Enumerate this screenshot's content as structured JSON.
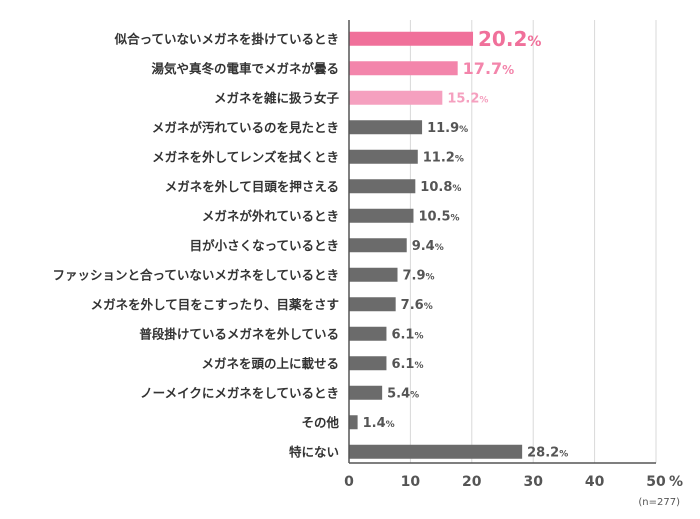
{
  "chart_data": {
    "type": "bar",
    "orientation": "horizontal",
    "categories": [
      "似合っていないメガネを掛けているとき",
      "湯気や真冬の電車でメガネが曇る",
      "メガネを雑に扱う女子",
      "メガネが汚れているのを見たとき",
      "メガネを外してレンズを拭くとき",
      "メガネを外して目頭を押さえる",
      "メガネが外れているとき",
      "目が小さくなっているとき",
      "ファッションと合っていないメガネをしているとき",
      "メガネを外して目をこすったり、目薬をさす",
      "普段掛けているメガネを外している",
      "メガネを頭の上に載せる",
      "ノーメイクにメガネをしているとき",
      "その他",
      "特にない"
    ],
    "values": [
      20.2,
      17.7,
      15.2,
      11.9,
      11.2,
      10.8,
      10.5,
      9.4,
      7.9,
      7.6,
      6.1,
      6.1,
      5.4,
      1.4,
      28.2
    ],
    "value_labels": [
      "20.2",
      "17.7",
      "15.2",
      "11.9",
      "11.2",
      "10.8",
      "10.5",
      "9.4",
      "7.9",
      "7.6",
      "6.1",
      "6.1",
      "5.4",
      "1.4",
      "28.2"
    ],
    "value_unit": "%",
    "bar_colors": [
      "#f0709a",
      "#f385ab",
      "#f5a0bf",
      "#6b6b6b",
      "#6b6b6b",
      "#6b6b6b",
      "#6b6b6b",
      "#6b6b6b",
      "#6b6b6b",
      "#6b6b6b",
      "#6b6b6b",
      "#6b6b6b",
      "#6b6b6b",
      "#6b6b6b",
      "#6b6b6b"
    ],
    "label_colors": [
      "#f0709a",
      "#f385ab",
      "#f5a0bf",
      "#555555",
      "#555555",
      "#555555",
      "#555555",
      "#555555",
      "#555555",
      "#555555",
      "#555555",
      "#555555",
      "#555555",
      "#555555",
      "#555555"
    ],
    "xticks": [
      "0",
      "10",
      "20",
      "30",
      "40",
      "50"
    ],
    "xtick_values": [
      0,
      10,
      20,
      30,
      40,
      50
    ],
    "axis_unit": "%",
    "xlim": [
      0,
      50
    ],
    "grid": true,
    "note": "(n=277)"
  }
}
